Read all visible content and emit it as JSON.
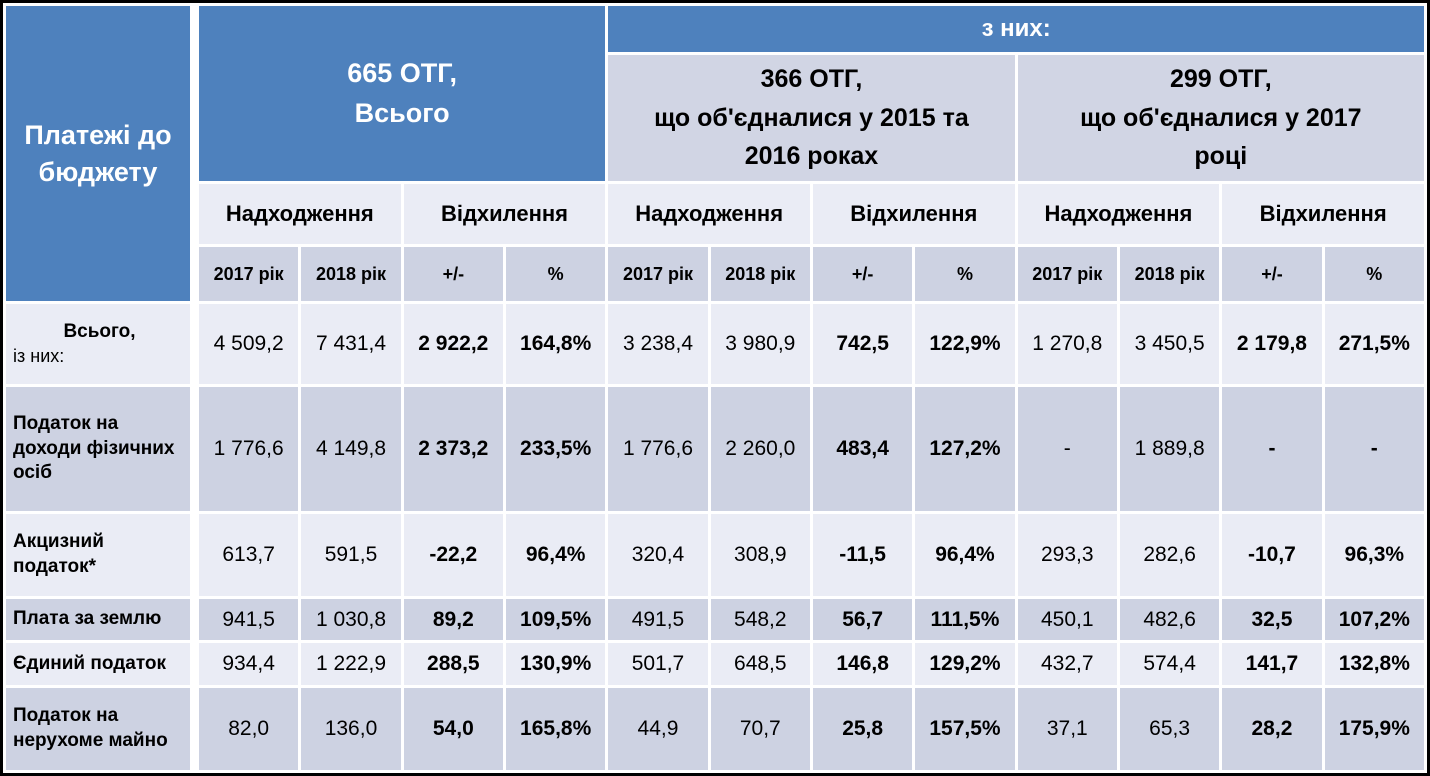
{
  "table": {
    "corner_label": "Платежі до бюджету",
    "group_total_label": "665 ОТГ,\nВсього",
    "of_them_label": "з них:",
    "subgroups": [
      "366 ОТГ,\nщо об'єдналися у 2015 та\n2016 роках",
      "299 ОТГ,\nщо об'єдналися у 2017\nроці"
    ],
    "measure_headers": [
      "Надходження",
      "Відхилення"
    ],
    "year_headers": [
      "2017 рік",
      "2018 рік",
      "+/-",
      "%"
    ],
    "rows": [
      {
        "label": "Всього,",
        "sublabel": "із них:",
        "values": [
          "4 509,2",
          "7 431,4",
          "2 922,2",
          "164,8%",
          "3 238,4",
          "3 980,9",
          "742,5",
          "122,9%",
          "1 270,8",
          "3 450,5",
          "2 179,8",
          "271,5%"
        ]
      },
      {
        "label": "Податок на доходи фізичних осіб",
        "sublabel": null,
        "values": [
          "1 776,6",
          "4 149,8",
          "2 373,2",
          "233,5%",
          "1 776,6",
          "2 260,0",
          "483,4",
          "127,2%",
          "-",
          "1 889,8",
          "-",
          "-"
        ]
      },
      {
        "label": "Акцизний податок*",
        "sublabel": null,
        "values": [
          "613,7",
          "591,5",
          "-22,2",
          "96,4%",
          "320,4",
          "308,9",
          "-11,5",
          "96,4%",
          "293,3",
          "282,6",
          "-10,7",
          "96,3%"
        ]
      },
      {
        "label": "Плата за землю",
        "sublabel": null,
        "values": [
          "941,5",
          "1 030,8",
          "89,2",
          "109,5%",
          "491,5",
          "548,2",
          "56,7",
          "111,5%",
          "450,1",
          "482,6",
          "32,5",
          "107,2%"
        ]
      },
      {
        "label": "Єдиний податок",
        "sublabel": null,
        "values": [
          "934,4",
          "1 222,9",
          "288,5",
          "130,9%",
          "501,7",
          "648,5",
          "146,8",
          "129,2%",
          "432,7",
          "574,4",
          "141,7",
          "132,8%"
        ]
      },
      {
        "label": "Податок на нерухоме майно",
        "sublabel": null,
        "values": [
          "82,0",
          "136,0",
          "54,0",
          "165,8%",
          "44,9",
          "70,7",
          "25,8",
          "157,5%",
          "37,1",
          "65,3",
          "28,2",
          "175,9%"
        ]
      }
    ]
  },
  "colors": {
    "header_blue": "#4E81BD",
    "band_light": "#EAECF5",
    "band_dark": "#CDD2E2",
    "subgroup_band": "#D1D5E4",
    "grid_white": "#FFFFFF",
    "frame_black": "#000000"
  }
}
